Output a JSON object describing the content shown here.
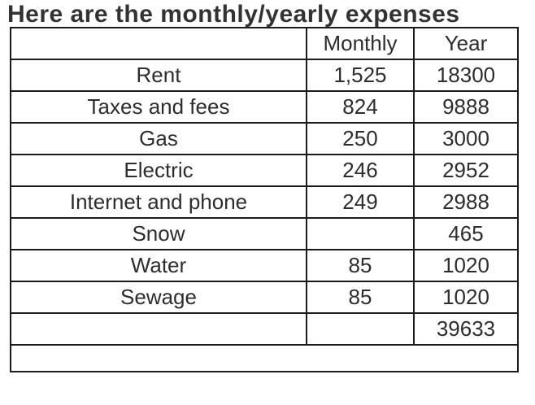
{
  "title": "Here are the monthly/yearly expenses",
  "table": {
    "columns": [
      "",
      "Monthly",
      "Year"
    ],
    "rows": [
      {
        "label": "Rent",
        "monthly": "1,525",
        "year": "18300"
      },
      {
        "label": "Taxes and fees",
        "monthly": "824",
        "year": "9888"
      },
      {
        "label": "Gas",
        "monthly": "250",
        "year": "3000"
      },
      {
        "label": "Electric",
        "monthly": "246",
        "year": "2952"
      },
      {
        "label": "Internet and phone",
        "monthly": "249",
        "year": "2988"
      },
      {
        "label": "Snow",
        "monthly": "",
        "year": "465"
      },
      {
        "label": "Water",
        "monthly": "85",
        "year": "1020"
      },
      {
        "label": "Sewage",
        "monthly": "85",
        "year": "1020"
      },
      {
        "label": "",
        "monthly": "",
        "year": "39633"
      }
    ]
  },
  "colors": {
    "background": "#ffffff",
    "title_text": "#333333",
    "cell_text": "#2d2d2d",
    "border": "#1b1b1b"
  }
}
